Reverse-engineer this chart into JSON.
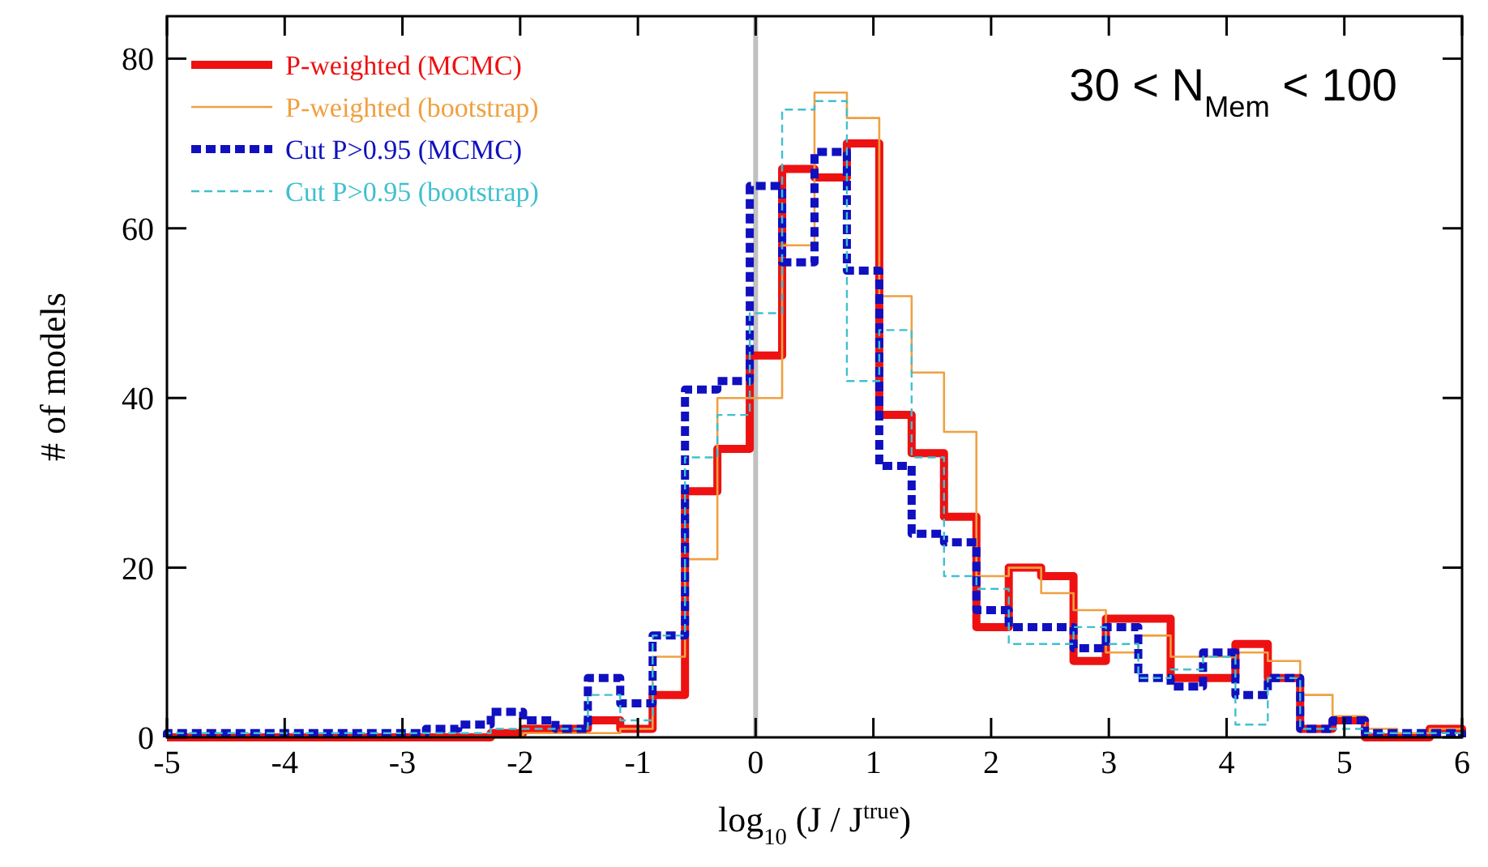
{
  "chart_data": {
    "type": "histogram",
    "xlabel": "log$_{10}$ (J / J$^{true}$)",
    "ylabel": "# of models",
    "bins": [
      -5,
      -4.725,
      -4.45,
      -4.175,
      -3.9,
      -3.625,
      -3.35,
      -3.075,
      -2.8,
      -2.525,
      -2.25,
      -1.975,
      -1.7,
      -1.425,
      -1.15,
      -0.875,
      -0.6,
      -0.325,
      -0.05,
      0.225,
      0.5,
      0.775,
      1.05,
      1.325,
      1.6,
      1.875,
      2.15,
      2.425,
      2.7,
      2.975,
      3.25,
      3.525,
      3.8,
      4.075,
      4.35,
      4.625,
      4.9,
      5.175,
      5.45,
      5.725,
      6
    ],
    "series": [
      {
        "name": "P-weighted (MCMC)",
        "color": "#ee1111",
        "line_style": "solid",
        "values": [
          0,
          0,
          0,
          0,
          0,
          0,
          0,
          0,
          0,
          0,
          0.5,
          1,
          1,
          2,
          1,
          5,
          29,
          34,
          45,
          67,
          66,
          70,
          38,
          33.5,
          26,
          13,
          20,
          19,
          9,
          14,
          14,
          7,
          7,
          11,
          7,
          1,
          2,
          0,
          0,
          1
        ]
      },
      {
        "name": "P-weighted (bootstrap)",
        "color": "#f0a040",
        "line_style": "solid",
        "values": [
          0,
          0,
          0,
          0,
          0,
          0,
          0,
          0,
          0,
          0,
          0,
          0.5,
          0.5,
          0.5,
          1,
          9.5,
          21,
          40,
          40,
          58,
          76,
          73,
          52,
          43,
          36,
          19,
          20,
          17,
          15,
          10,
          12,
          9.5,
          9.5,
          10,
          9,
          5,
          2.5,
          1,
          0.5,
          1
        ]
      },
      {
        "name": "Cut P>0.95 (MCMC)",
        "color": "#1010c0",
        "line_style": "dashed",
        "values": [
          0.5,
          0.5,
          0.5,
          0.5,
          0.5,
          0.5,
          0.5,
          0.5,
          1,
          1.5,
          3,
          2,
          1,
          7,
          4,
          12,
          41,
          42,
          65,
          56,
          69,
          55,
          32,
          24,
          23,
          15,
          13,
          13,
          10.5,
          13,
          7,
          6,
          10,
          5,
          7,
          1,
          2,
          0.5,
          0.5,
          0.5
        ]
      },
      {
        "name": "Cut P>0.95 (bootstrap)",
        "color": "#40c0d0",
        "line_style": "dashed",
        "values": [
          0.5,
          0.5,
          0.5,
          0.5,
          0.5,
          0.5,
          0.5,
          0.5,
          0.5,
          0.5,
          1,
          1,
          1,
          5,
          2,
          12,
          33,
          38,
          50,
          74,
          75,
          42,
          48,
          33,
          19,
          17.5,
          11,
          11,
          13,
          11,
          7,
          8,
          9.5,
          1.5,
          7,
          1,
          1,
          0.5,
          0.5,
          0.5
        ]
      }
    ],
    "xlim": [
      -5,
      6
    ],
    "xticks": [
      -5,
      -4,
      -3,
      -2,
      -1,
      0,
      1,
      2,
      3,
      4,
      5,
      6
    ],
    "ylim": [
      0,
      85
    ],
    "yticks": [
      0,
      20,
      40,
      60,
      80
    ],
    "ref_lines": [
      {
        "axis": "x",
        "value": 0,
        "color": "#c0c0c0"
      }
    ],
    "annotations": [
      "30 < N$_{Mem}$ < 100"
    ],
    "legend": "top left",
    "grid": false
  }
}
